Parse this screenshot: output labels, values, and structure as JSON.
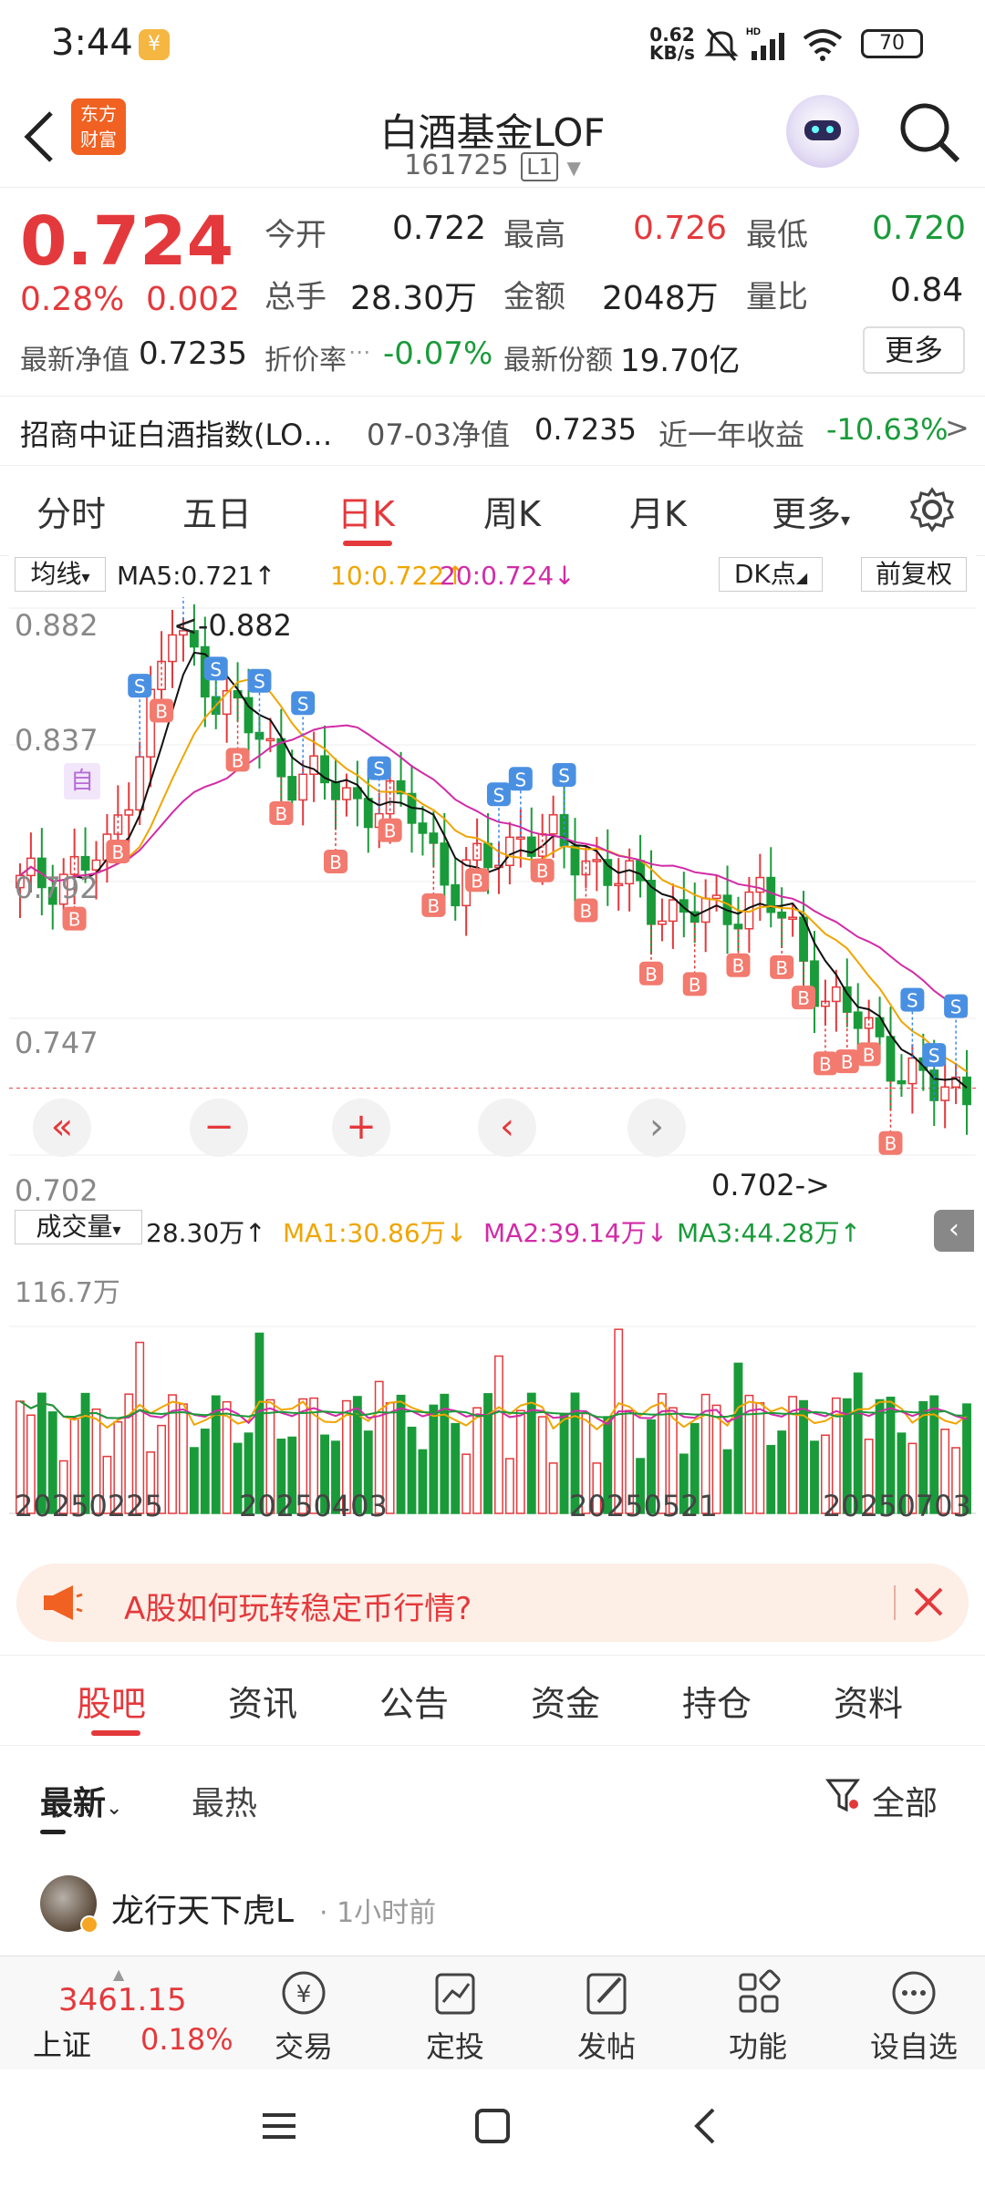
{
  "status": {
    "time": "3:44",
    "net_speed": "0.62",
    "net_unit": "KB/s",
    "signal_tag": "HD",
    "battery": "70"
  },
  "header": {
    "title": "白酒基金LOF",
    "code": "161725",
    "level_badge": "L1",
    "logo_line1": "东方",
    "logo_line2": "财富"
  },
  "quote": {
    "price": "0.724",
    "change_pct": "0.28%",
    "change_abs": "0.002",
    "open_label": "今开",
    "open": "0.722",
    "high_label": "最高",
    "high": "0.726",
    "low_label": "最低",
    "low": "0.720",
    "vol_label": "总手",
    "vol": "28.30万",
    "amount_label": "金额",
    "amount": "2048万",
    "ratio_label": "量比",
    "ratio": "0.84",
    "nav_label": "最新净值",
    "nav": "0.7235",
    "discount_label": "折价率",
    "discount": "-0.07%",
    "shares_label": "最新份额",
    "shares": "19.70亿",
    "more_button": "更多",
    "index_name": "招商中证白酒指数(LO…",
    "nav_date_label": "07-03净值",
    "nav_date_value": "0.7235",
    "yearly_label": "近一年收益",
    "yearly_value": "-10.63%"
  },
  "ktabs": [
    "分时",
    "五日",
    "日K",
    "周K",
    "月K",
    "更多"
  ],
  "ktabs_active": 2,
  "indicator_bar": {
    "selector": "均线",
    "ma5": "MA5:0.721↑",
    "ma10": "10:0.722↑",
    "ma20": "20:0.724↓",
    "dk": "DK点",
    "fq": "前复权"
  },
  "price_axis": [
    "0.882",
    "0.837",
    "0.792",
    "0.747",
    "0.702"
  ],
  "annotations": {
    "max_label": "<-0.882",
    "min_label": "0.702->",
    "self_tag": "自"
  },
  "volume_bar": {
    "selector": "成交量",
    "vol": "28.30万↑",
    "ma1": "MA1:30.86万↓",
    "ma2": "MA2:39.14万↓",
    "ma3": "MA3:44.28万↑",
    "axis_max": "116.7万"
  },
  "date_axis": [
    "20250225",
    "20250403",
    "20250521",
    "20250703"
  ],
  "chart_data": {
    "type": "candlestick",
    "ylim": [
      0.702,
      0.882
    ],
    "volume_max_wan": 116.7,
    "last_close": 0.724,
    "colors": {
      "up": "#e4393c",
      "down": "#1a9b3a",
      "ma5": "#111111",
      "ma10": "#f0a500",
      "ma20": "#d22ba6"
    }
  },
  "banner": {
    "text": "A股如何玩转稳定币行情?"
  },
  "bottom_tabs": [
    "股吧",
    "资讯",
    "公告",
    "资金",
    "持仓",
    "资料"
  ],
  "feed": {
    "sort_new": "最新",
    "sort_hot": "最热",
    "filter": "全部",
    "post_user": "龙行天下虎L",
    "post_time": "1小时前"
  },
  "index_ticker": {
    "value": "3461.15",
    "name": "上证",
    "pct": "0.18%"
  },
  "bottom_nav": [
    "交易",
    "定投",
    "发帖",
    "功能",
    "设自选"
  ]
}
